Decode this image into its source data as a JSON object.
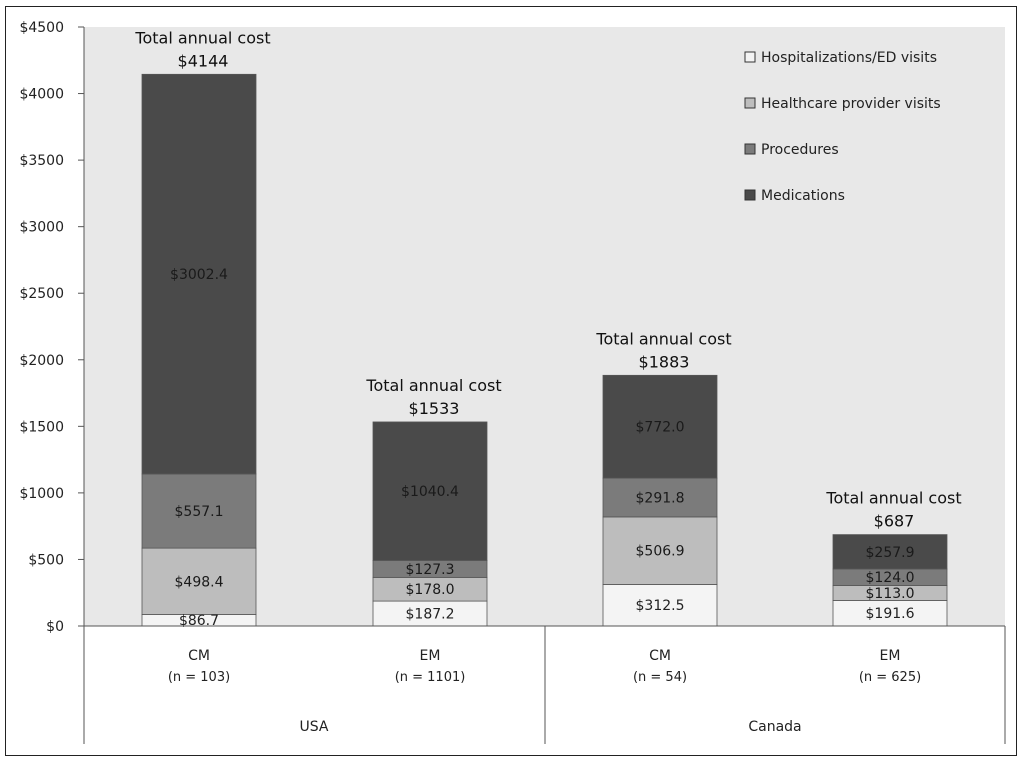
{
  "chart_data": {
    "type": "bar",
    "stacked": true,
    "categories": [
      "CM",
      "EM",
      "CM",
      "EM"
    ],
    "category_sizes": [
      "(n = 103)",
      "(n = 1101)",
      "(n = 54)",
      "(n = 625)"
    ],
    "groups": [
      {
        "label": "USA",
        "categories": [
          0,
          1
        ]
      },
      {
        "label": "Canada",
        "categories": [
          2,
          3
        ]
      }
    ],
    "series": [
      {
        "name": "Hospitalizations/ED visits",
        "values": [
          86.7,
          187.2,
          312.5,
          191.6
        ],
        "labels": [
          "$86.7",
          "$187.2",
          "$312.5",
          "$191.6"
        ],
        "color": "#f4f4f4"
      },
      {
        "name": "Healthcare provider visits",
        "values": [
          498.4,
          178.0,
          506.9,
          113.0
        ],
        "labels": [
          "$498.4",
          "$178.0",
          "$506.9",
          "$113.0"
        ],
        "color": "#bdbdbd"
      },
      {
        "name": "Procedures",
        "values": [
          557.1,
          127.3,
          291.8,
          124.0
        ],
        "labels": [
          "$557.1",
          "$127.3",
          "$291.8",
          "$124.0"
        ],
        "color": "#7b7b7b"
      },
      {
        "name": "Medications",
        "values": [
          3002.4,
          1040.4,
          772.0,
          257.9
        ],
        "labels": [
          "$3002.4",
          "$1040.4",
          "$772.0",
          "$257.9"
        ],
        "color": "#4a4a4a"
      }
    ],
    "totals": [
      4144,
      1533,
      1883,
      687
    ],
    "total_caption": "Total annual cost",
    "total_labels": [
      "$4144",
      "$1533",
      "$1883",
      "$687"
    ],
    "ylim": [
      0,
      4500
    ],
    "yticks": [
      0,
      500,
      1000,
      1500,
      2000,
      2500,
      3000,
      3500,
      4000,
      4500
    ],
    "ytick_labels": [
      "$0",
      "$500",
      "$1000",
      "$1500",
      "$2000",
      "$2500",
      "$3000",
      "$3500",
      "$4000",
      "$4500"
    ],
    "legend_position": "top-right",
    "plot_background": "#e8e8e8",
    "grid": false
  }
}
